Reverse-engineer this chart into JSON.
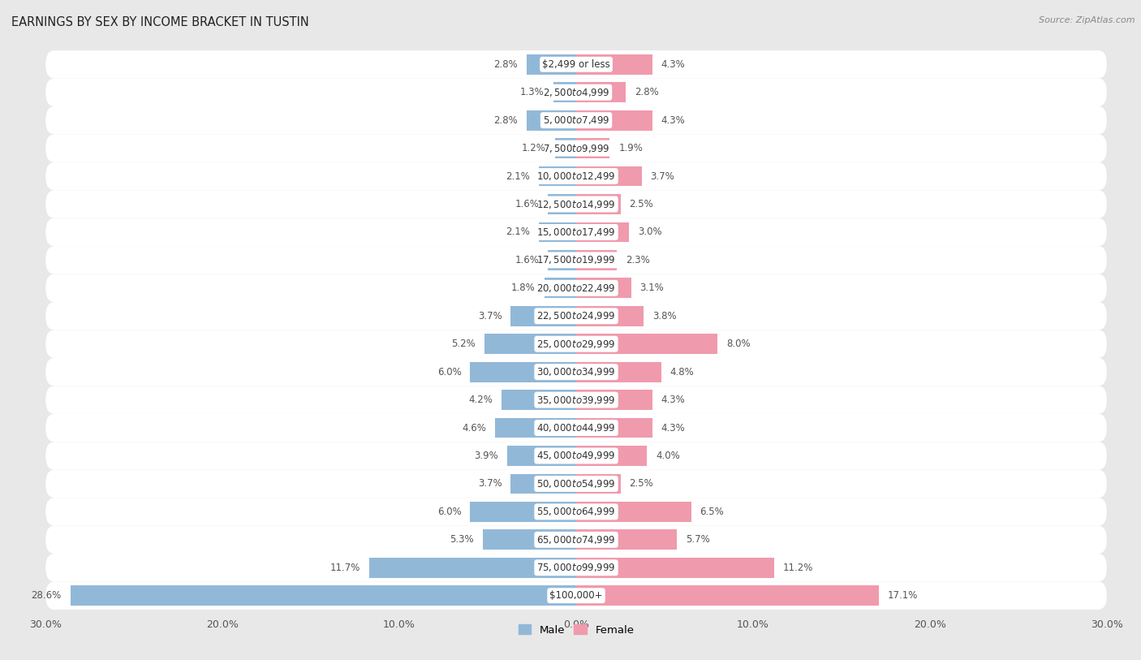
{
  "title": "EARNINGS BY SEX BY INCOME BRACKET IN TUSTIN",
  "source": "Source: ZipAtlas.com",
  "categories": [
    "$2,499 or less",
    "$2,500 to $4,999",
    "$5,000 to $7,499",
    "$7,500 to $9,999",
    "$10,000 to $12,499",
    "$12,500 to $14,999",
    "$15,000 to $17,499",
    "$17,500 to $19,999",
    "$20,000 to $22,499",
    "$22,500 to $24,999",
    "$25,000 to $29,999",
    "$30,000 to $34,999",
    "$35,000 to $39,999",
    "$40,000 to $44,999",
    "$45,000 to $49,999",
    "$50,000 to $54,999",
    "$55,000 to $64,999",
    "$65,000 to $74,999",
    "$75,000 to $99,999",
    "$100,000+"
  ],
  "male_values": [
    2.8,
    1.3,
    2.8,
    1.2,
    2.1,
    1.6,
    2.1,
    1.6,
    1.8,
    3.7,
    5.2,
    6.0,
    4.2,
    4.6,
    3.9,
    3.7,
    6.0,
    5.3,
    11.7,
    28.6
  ],
  "female_values": [
    4.3,
    2.8,
    4.3,
    1.9,
    3.7,
    2.5,
    3.0,
    2.3,
    3.1,
    3.8,
    8.0,
    4.8,
    4.3,
    4.3,
    4.0,
    2.5,
    6.5,
    5.7,
    11.2,
    17.1
  ],
  "male_color": "#92b8d8",
  "female_color": "#f09aad",
  "male_label": "Male",
  "female_label": "Female",
  "axis_max": 30.0,
  "x_ticks": [
    -30.0,
    -20.0,
    -10.0,
    0.0,
    10.0,
    20.0,
    30.0
  ],
  "x_tick_labels": [
    "30.0%",
    "20.0%",
    "10.0%",
    "0.0%",
    "10.0%",
    "20.0%",
    "30.0%"
  ],
  "row_bg_color": "#ffffff",
  "outer_bg_color": "#e8e8e8",
  "title_fontsize": 10.5,
  "source_fontsize": 8,
  "label_fontsize": 8.5,
  "category_fontsize": 8.5,
  "tick_fontsize": 9
}
